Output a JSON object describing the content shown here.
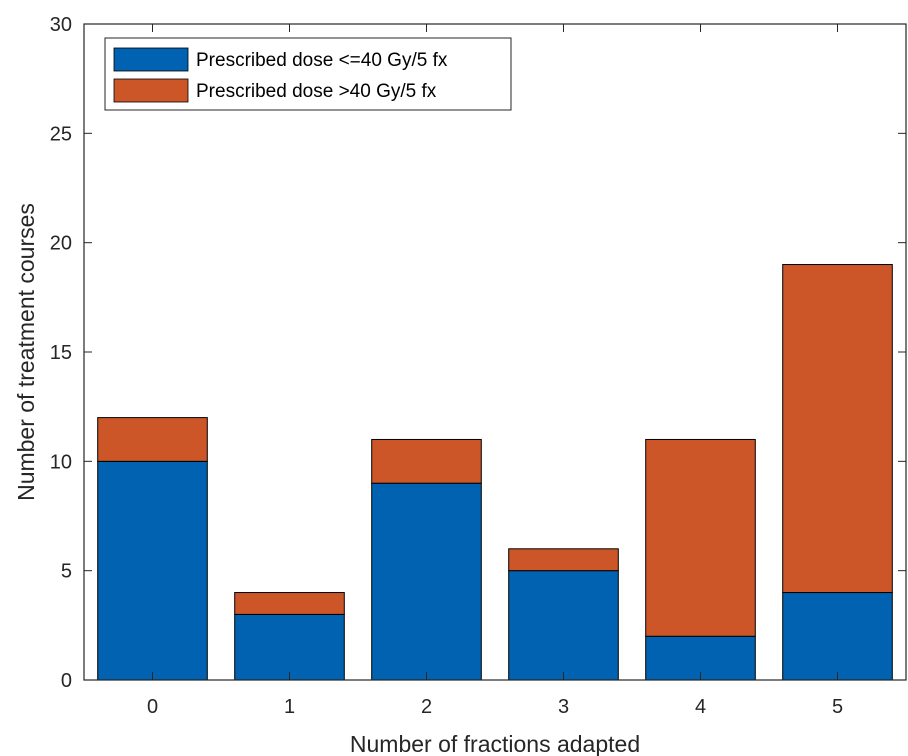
{
  "chart_data": {
    "type": "bar",
    "stacked": true,
    "categories": [
      "0",
      "1",
      "2",
      "3",
      "4",
      "5"
    ],
    "series": [
      {
        "name": "Prescribed dose <=40 Gy/5 fx",
        "values": [
          10,
          3,
          9,
          5,
          2,
          4
        ],
        "color": "#0062B0"
      },
      {
        "name": "Prescribed dose >40 Gy/5 fx",
        "values": [
          2,
          1,
          2,
          1,
          9,
          15
        ],
        "color": "#CC5627"
      }
    ],
    "xlabel": "Number of fractions adapted",
    "ylabel": "Number of treatment courses",
    "ylim": [
      0,
      30
    ],
    "yticks": [
      0,
      5,
      10,
      15,
      20,
      25,
      30
    ],
    "grid": false,
    "legend_position": "top-left"
  }
}
